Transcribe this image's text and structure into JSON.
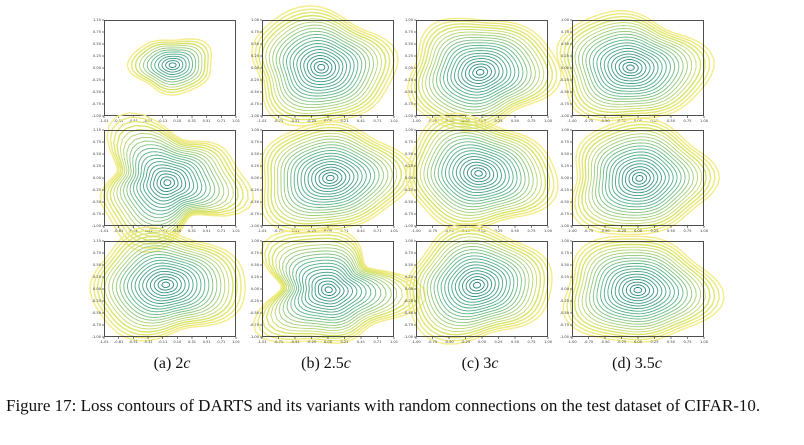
{
  "figure": {
    "subcaptions": [
      {
        "label": "(a) 2",
        "var": "c"
      },
      {
        "label": "(b) 2.5",
        "var": "c"
      },
      {
        "label": "(c) 3",
        "var": "c"
      },
      {
        "label": "(d) 3.5",
        "var": "c"
      }
    ],
    "caption": "Figure 17: Loss contours of DARTS and its variants with random connections on the test dataset of CIFAR-10."
  },
  "chart_data": [
    {
      "type": "contour",
      "column": "a",
      "row": 1,
      "xticks": [
        "-1.01",
        "-0.81",
        "-0.51",
        "-0.31",
        "-0.11",
        "0.10",
        "0.31",
        "0.51",
        "0.71",
        "1.01"
      ],
      "yticks": [
        "1.15",
        "0.75",
        "0.50",
        "0.25",
        "0.00",
        "-0.25",
        "-0.50",
        "-0.75",
        "-1.00"
      ],
      "shape": "small-blob"
    },
    {
      "type": "contour",
      "column": "b",
      "row": 1,
      "xticks": [
        "-1.01",
        "-0.71",
        "-0.51",
        "-0.25",
        "0.00",
        "0.21",
        "0.41",
        "0.71",
        "1.01"
      ],
      "yticks": [
        "1.00",
        "0.75",
        "0.50",
        "0.25",
        "0.00",
        "-0.25",
        "-0.50",
        "-0.75",
        "-1.00"
      ],
      "shape": "full"
    },
    {
      "type": "contour",
      "column": "c",
      "row": 1,
      "xticks": [
        "-1.00",
        "-0.75",
        "-0.50",
        "-0.25",
        "0.00",
        "0.25",
        "0.50",
        "0.75",
        "1.00"
      ],
      "yticks": [
        "1.00",
        "0.75",
        "0.50",
        "0.25",
        "0.00",
        "-0.25",
        "-0.50",
        "-0.75",
        "-1.00"
      ],
      "shape": "full"
    },
    {
      "type": "contour",
      "column": "d",
      "row": 1,
      "xticks": [
        "-1.00",
        "-0.75",
        "-0.50",
        "-0.25",
        "0.00",
        "0.25",
        "0.50",
        "0.75",
        "1.00"
      ],
      "yticks": [
        "1.00",
        "0.75",
        "0.50",
        "0.25",
        "0.00",
        "-0.25",
        "-0.50",
        "-0.75",
        "-1.00"
      ],
      "shape": "full"
    },
    {
      "type": "contour",
      "column": "a",
      "row": 2,
      "xticks": [
        "-1.01",
        "-0.81",
        "-0.51",
        "-0.31",
        "-0.11",
        "0.10",
        "0.31",
        "0.51",
        "0.71",
        "1.01"
      ],
      "yticks": [
        "1.15",
        "0.75",
        "0.50",
        "0.25",
        "0.00",
        "-0.25",
        "-0.50",
        "-0.75",
        "-1.00"
      ],
      "shape": "irregular"
    },
    {
      "type": "contour",
      "column": "b",
      "row": 2,
      "xticks": [
        "-1.01",
        "-0.71",
        "-0.51",
        "-0.25",
        "0.00",
        "0.21",
        "0.41",
        "0.71",
        "1.01"
      ],
      "yticks": [
        "1.00",
        "0.75",
        "0.50",
        "0.25",
        "0.00",
        "-0.25",
        "-0.50",
        "-0.75",
        "-1.00"
      ],
      "shape": "full"
    },
    {
      "type": "contour",
      "column": "c",
      "row": 2,
      "xticks": [
        "-1.00",
        "-0.75",
        "-0.50",
        "-0.25",
        "0.00",
        "0.25",
        "0.50",
        "0.75",
        "1.00"
      ],
      "yticks": [
        "1.00",
        "0.75",
        "0.50",
        "0.25",
        "0.00",
        "-0.25",
        "-0.50",
        "-0.75",
        "-1.00"
      ],
      "shape": "full"
    },
    {
      "type": "contour",
      "column": "d",
      "row": 2,
      "xticks": [
        "-1.00",
        "-0.75",
        "-0.50",
        "-0.25",
        "0.00",
        "0.25",
        "0.50",
        "0.75",
        "1.00"
      ],
      "yticks": [
        "1.00",
        "0.75",
        "0.50",
        "0.25",
        "0.00",
        "-0.25",
        "-0.50",
        "-0.75",
        "-1.00"
      ],
      "shape": "full"
    },
    {
      "type": "contour",
      "column": "a",
      "row": 3,
      "xticks": [
        "-1.01",
        "-0.81",
        "-0.51",
        "-0.31",
        "-0.11",
        "0.10",
        "0.31",
        "0.51",
        "0.71",
        "1.01"
      ],
      "yticks": [
        "1.15",
        "0.75",
        "0.50",
        "0.25",
        "0.00",
        "-0.25",
        "-0.50",
        "-0.75",
        "-1.00"
      ],
      "shape": "full"
    },
    {
      "type": "contour",
      "column": "b",
      "row": 3,
      "xticks": [
        "-1.01",
        "-0.71",
        "-0.51",
        "-0.25",
        "0.00",
        "0.21",
        "0.41",
        "0.71",
        "1.01"
      ],
      "yticks": [
        "1.00",
        "0.75",
        "0.50",
        "0.25",
        "0.00",
        "-0.25",
        "-0.50",
        "-0.75",
        "-1.00"
      ],
      "shape": "irregular"
    },
    {
      "type": "contour",
      "column": "c",
      "row": 3,
      "xticks": [
        "-1.00",
        "-0.75",
        "-0.50",
        "-0.25",
        "0.00",
        "0.25",
        "0.50",
        "0.75",
        "1.00"
      ],
      "yticks": [
        "1.00",
        "0.75",
        "0.50",
        "0.25",
        "0.00",
        "-0.25",
        "-0.50",
        "-0.75",
        "-1.00"
      ],
      "shape": "full"
    },
    {
      "type": "contour",
      "column": "d",
      "row": 3,
      "xticks": [
        "-1.00",
        "-0.75",
        "-0.50",
        "-0.25",
        "0.00",
        "0.25",
        "0.50",
        "0.75",
        "1.00"
      ],
      "yticks": [
        "1.00",
        "0.75",
        "0.50",
        "0.25",
        "0.00",
        "-0.25",
        "-0.50",
        "-0.75",
        "-1.00"
      ],
      "shape": "full"
    }
  ],
  "colors": {
    "inner": "#1f7f7a",
    "mid": "#5bb38a",
    "outer": "#d8e36a",
    "edge": "#f4ec8a"
  }
}
